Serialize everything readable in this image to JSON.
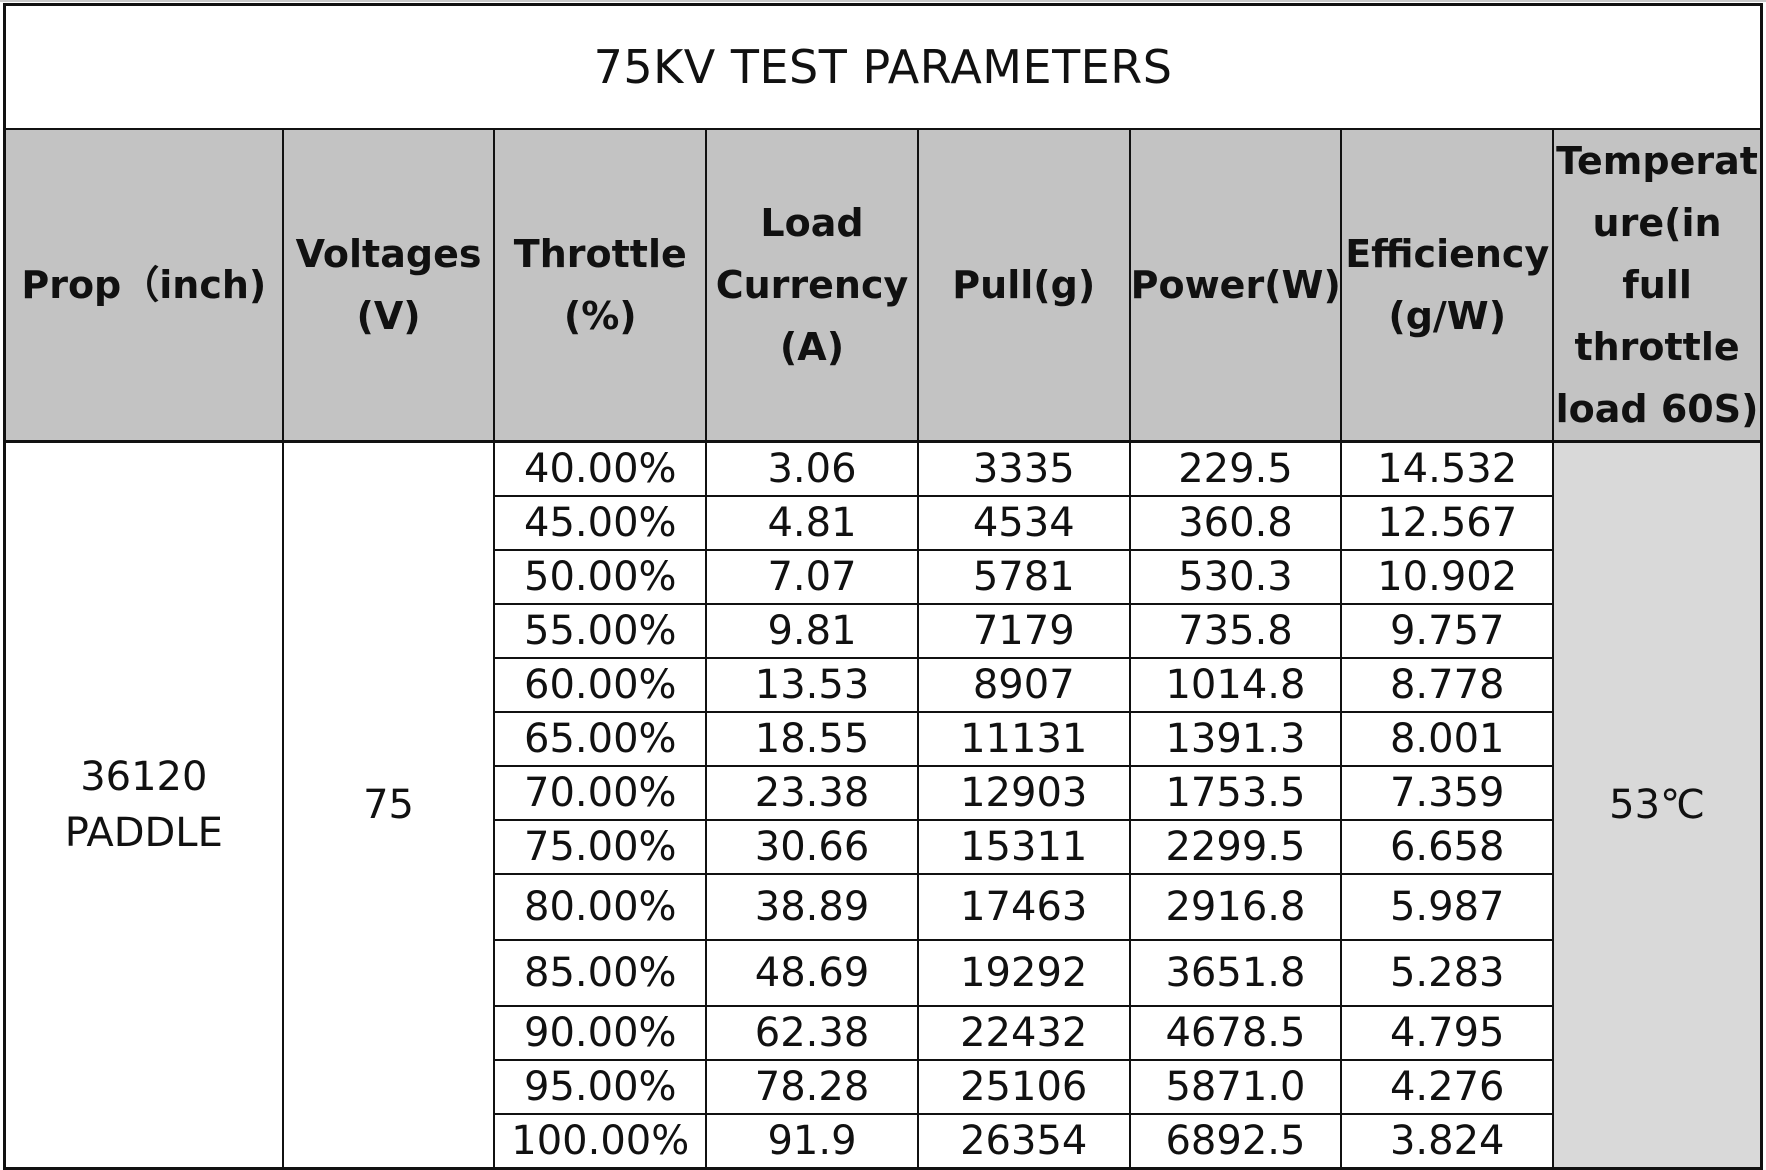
{
  "title": "75KV TEST PARAMETERS",
  "headers": {
    "prop": "Prop（inch)",
    "voltages": [
      "Voltages",
      "(V)"
    ],
    "throttle": [
      "Throttle",
      "(%)"
    ],
    "load_currency": [
      "Load",
      "Currency",
      "(A)"
    ],
    "pull": "Pull(g)",
    "power": "Power(W)",
    "efficiency": [
      "Efficiency",
      "(g/W)"
    ],
    "temperature": [
      "Temperat",
      "ure(in full",
      "throttle",
      "load 60S)"
    ]
  },
  "prop_value": [
    "36120",
    "PADDLE"
  ],
  "voltage_value": "75",
  "temperature_value": "53℃",
  "rows": [
    {
      "throttle": "40.00%",
      "current": "3.06",
      "pull": "3335",
      "power": "229.5",
      "efficiency": "14.532"
    },
    {
      "throttle": "45.00%",
      "current": "4.81",
      "pull": "4534",
      "power": "360.8",
      "efficiency": "12.567"
    },
    {
      "throttle": "50.00%",
      "current": "7.07",
      "pull": "5781",
      "power": "530.3",
      "efficiency": "10.902"
    },
    {
      "throttle": "55.00%",
      "current": "9.81",
      "pull": "7179",
      "power": "735.8",
      "efficiency": "9.757"
    },
    {
      "throttle": "60.00%",
      "current": "13.53",
      "pull": "8907",
      "power": "1014.8",
      "efficiency": "8.778"
    },
    {
      "throttle": "65.00%",
      "current": "18.55",
      "pull": "11131",
      "power": "1391.3",
      "efficiency": "8.001"
    },
    {
      "throttle": "70.00%",
      "current": "23.38",
      "pull": "12903",
      "power": "1753.5",
      "efficiency": "7.359"
    },
    {
      "throttle": "75.00%",
      "current": "30.66",
      "pull": "15311",
      "power": "2299.5",
      "efficiency": "6.658"
    },
    {
      "throttle": "80.00%",
      "current": "38.89",
      "pull": "17463",
      "power": "2916.8",
      "efficiency": "5.987"
    },
    {
      "throttle": "85.00%",
      "current": "48.69",
      "pull": "19292",
      "power": "3651.8",
      "efficiency": "5.283"
    },
    {
      "throttle": "90.00%",
      "current": "62.38",
      "pull": "22432",
      "power": "4678.5",
      "efficiency": "4.795"
    },
    {
      "throttle": "95.00%",
      "current": "78.28",
      "pull": "25106",
      "power": "5871.0",
      "efficiency": "4.276"
    },
    {
      "throttle": "100.00%",
      "current": "91.9",
      "pull": "26354",
      "power": "6892.5",
      "efficiency": "3.824"
    }
  ],
  "colors": {
    "header_bg": "#c3c3c3",
    "temperature_bg": "#d9d9d9",
    "border": "#111111"
  }
}
